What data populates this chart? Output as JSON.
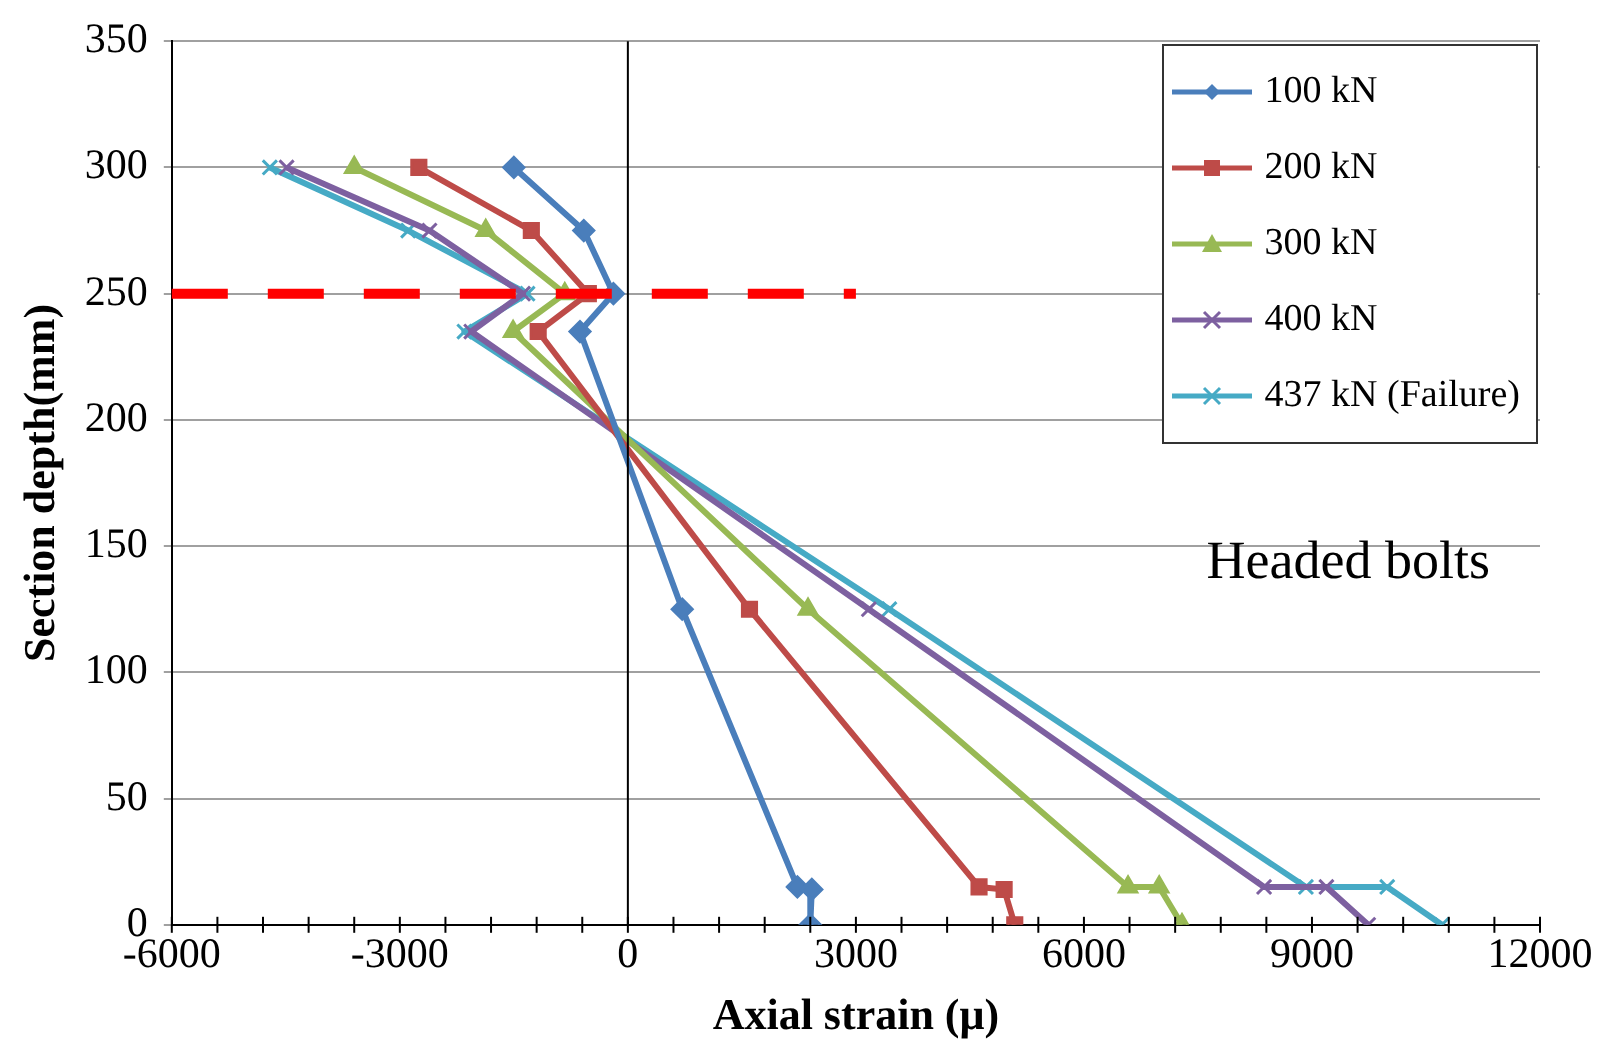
{
  "chart_data": {
    "type": "line",
    "xlabel": "Axial strain (μ)",
    "ylabel": "Section depth(mm)",
    "xlim": [
      -6000,
      12000
    ],
    "xticks": [
      -6000,
      -3000,
      0,
      3000,
      6000,
      9000,
      12000
    ],
    "ylim": [
      0,
      350
    ],
    "yticks": [
      0,
      50,
      100,
      150,
      200,
      250,
      300,
      350
    ],
    "grid": "y",
    "legend": "top right",
    "line_style": "solid",
    "annotations": [
      "Headed bolts"
    ],
    "ref_lines": [
      {
        "axis": "y",
        "value": 250,
        "color": "#ff0000",
        "line_style": "dashed"
      }
    ],
    "series": [
      {
        "name": "100 kN",
        "color": "#4a7ebb",
        "marker": "diamond",
        "x": [
          -1500,
          -580,
          -190,
          -630,
          715,
          2230,
          2420,
          2400
        ],
        "values": [
          300,
          275,
          250,
          235,
          125,
          15,
          14,
          0
        ]
      },
      {
        "name": "200 kN",
        "color": "#be4b48",
        "marker": "square",
        "x": [
          -2750,
          -1270,
          -520,
          -1180,
          1600,
          4620,
          4950,
          5090
        ],
        "values": [
          300,
          275,
          250,
          235,
          125,
          15,
          14,
          0
        ]
      },
      {
        "name": "300 kN",
        "color": "#98b954",
        "marker": "triangle",
        "x": [
          -3600,
          -1870,
          -830,
          -1510,
          2370,
          6580,
          6990,
          7290
        ],
        "values": [
          300,
          275,
          250,
          235,
          125,
          15,
          15,
          0
        ]
      },
      {
        "name": "400 kN",
        "color": "#7d60a0",
        "marker": "cross",
        "x": [
          -4490,
          -2610,
          -1380,
          -2060,
          3170,
          8370,
          9190,
          9740
        ],
        "values": [
          300,
          275,
          250,
          235,
          125,
          15,
          15,
          0
        ]
      },
      {
        "name": "437 kN (Failure)",
        "color": "#46aac5",
        "marker": "cross",
        "x": [
          -4710,
          -2890,
          -1320,
          -2150,
          3440,
          8920,
          9990,
          10710
        ],
        "values": [
          300,
          275,
          250,
          235,
          125,
          15,
          15,
          0
        ]
      }
    ]
  }
}
